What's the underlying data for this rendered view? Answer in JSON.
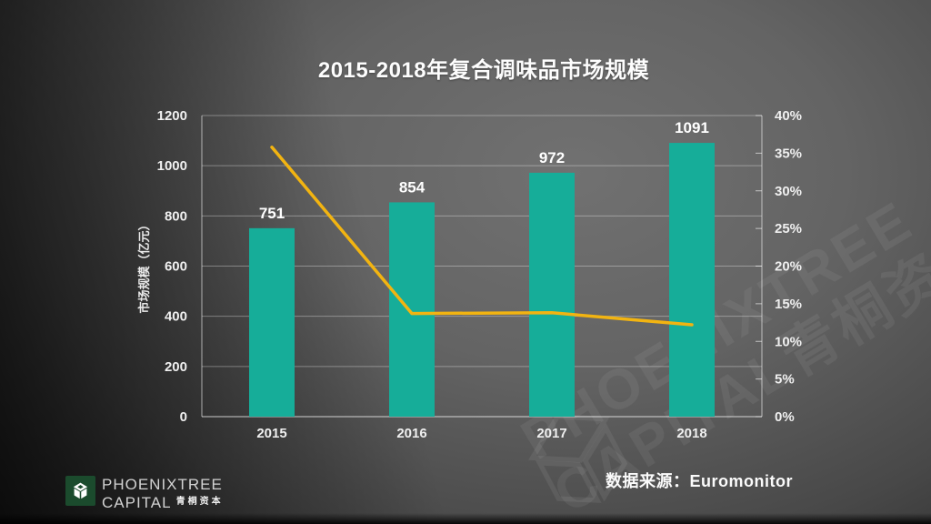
{
  "slide": {
    "title": "2015-2018年复合调味品市场规模",
    "source_label": "数据来源：Euromonitor",
    "logo": {
      "line1": "PHOENIXTREE",
      "line2": "CAPITAL",
      "line2_cn": "青桐资本"
    },
    "watermark": {
      "line1": "PHOENIXTREE",
      "line2": "CAPITAL青桐资本"
    }
  },
  "chart_data": {
    "type": "bar",
    "title": "2015-2018年复合调味品市场规模",
    "categories": [
      "2015",
      "2016",
      "2017",
      "2018"
    ],
    "series": [
      {
        "name": "market_size",
        "type": "bar",
        "axis": "left",
        "color": "#16AD99",
        "values": [
          751,
          854,
          972,
          1091
        ]
      },
      {
        "name": "growth_rate_pct",
        "type": "line",
        "axis": "right",
        "color": "#F2B411",
        "values": [
          35.8,
          13.7,
          13.8,
          12.2
        ]
      }
    ],
    "bar_labels": [
      "751",
      "854",
      "972",
      "1091"
    ],
    "ylabel_left": "市场规模（亿元）",
    "ylim_left": [
      0,
      1200
    ],
    "ylim_right": [
      0,
      40
    ],
    "left_tick_values": [
      0,
      200,
      400,
      600,
      800,
      1000,
      1200
    ],
    "left_tick_labels": [
      "0",
      "200",
      "400",
      "600",
      "800",
      "1000",
      "1200"
    ],
    "right_tick_values": [
      0,
      5,
      10,
      15,
      20,
      25,
      30,
      35,
      40
    ],
    "right_tick_labels": [
      "0%",
      "5%",
      "10%",
      "15%",
      "20%",
      "25%",
      "30%",
      "35%",
      "40%"
    ],
    "grid": true,
    "legend": false
  },
  "colors": {
    "bar": "#16AD99",
    "line": "#F2B411",
    "axis_text": "#EFEFEF",
    "gridline": "rgba(255,255,255,0.34)",
    "axis_line": "rgba(255,255,255,0.6)",
    "baseline": "rgba(255,255,255,0.75)",
    "logo_green": "#1B4B2D"
  }
}
